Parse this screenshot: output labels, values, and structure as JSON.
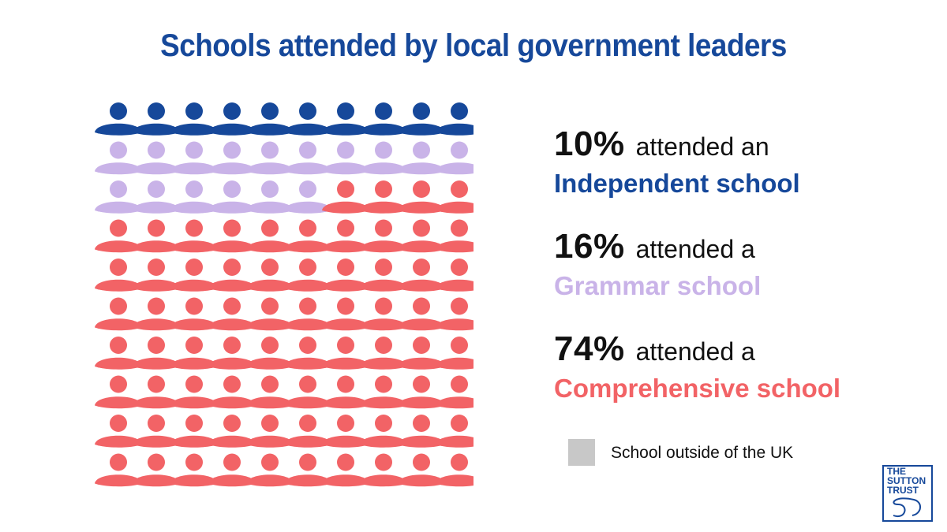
{
  "title": "Schools attended by local government leaders",
  "stats": [
    {
      "pct": "10%",
      "verb": "attended an",
      "label": "Independent school"
    },
    {
      "pct": "16%",
      "verb": "attended a",
      "label": "Grammar school"
    },
    {
      "pct": "74%",
      "verb": "attended a",
      "label": "Comprehensive school"
    }
  ],
  "legend": {
    "label": "School outside of the UK"
  },
  "logo": {
    "line1": "THE",
    "line2": "SUTTON",
    "line3": "TRUST"
  },
  "colors": {
    "title": "#16489a",
    "independent": "#16489a",
    "grammar": "#c9b3e8",
    "comprehensive": "#f26366",
    "outside_uk": "#c8c8c8"
  },
  "chart_data": {
    "type": "waffle",
    "grid": {
      "rows": 10,
      "cols": 10
    },
    "unit": "person icon = 1% of local government leaders",
    "series": [
      {
        "name": "Independent school",
        "value": 10,
        "color": "#16489a"
      },
      {
        "name": "Grammar school",
        "value": 16,
        "color": "#c9b3e8"
      },
      {
        "name": "Comprehensive school",
        "value": 74,
        "color": "#f26366"
      }
    ],
    "fill_order": "row-major, top-left to bottom-right"
  }
}
